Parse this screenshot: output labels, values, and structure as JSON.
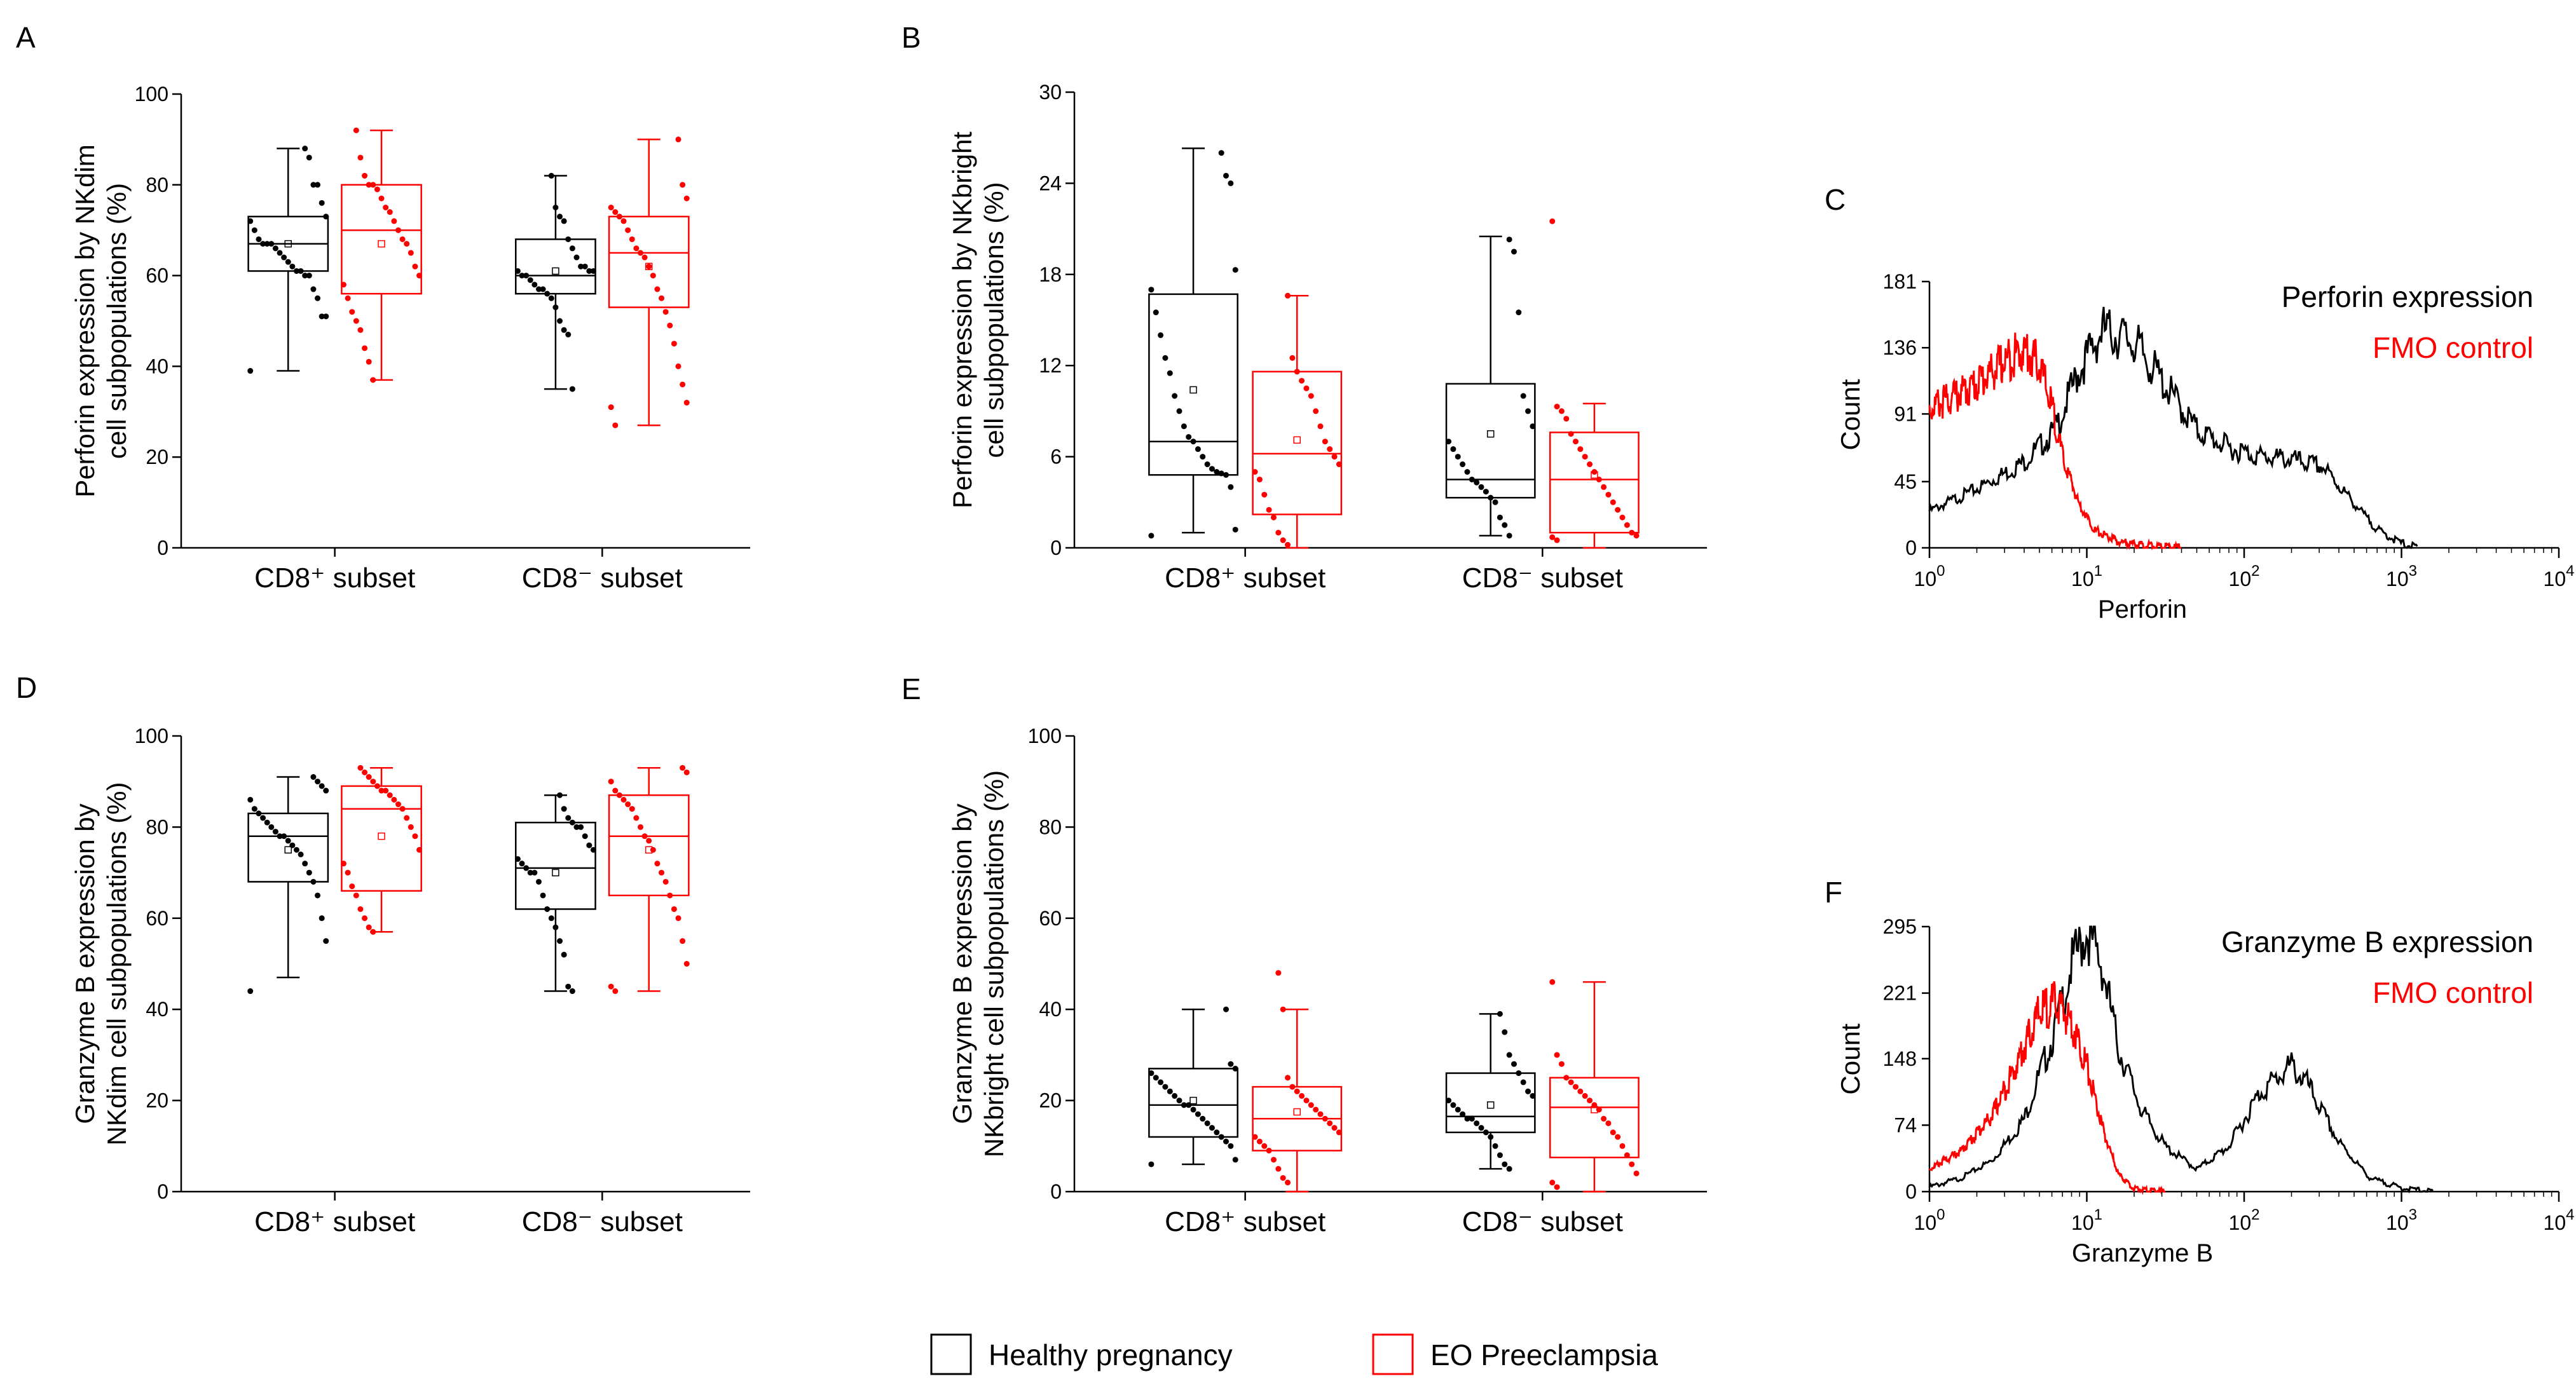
{
  "legend": {
    "items": [
      {
        "label": "Healthy pregnancy",
        "color": "#000000"
      },
      {
        "label": "EO Preeclampsia",
        "color": "#ff0000"
      }
    ]
  },
  "chart_data": [
    {
      "panel": "A",
      "type": "box",
      "ylabel_lines": [
        "Perforin expression by NKdim",
        "cell subpopulations (%)"
      ],
      "categories": [
        "CD8⁺ subset",
        "CD8⁻ subset"
      ],
      "ylim": [
        0,
        100
      ],
      "yticks": [
        0,
        20,
        40,
        60,
        80,
        100
      ],
      "series": [
        {
          "name": "Healthy pregnancy",
          "color": "#000000",
          "boxes": [
            {
              "min": 39,
              "q1": 61,
              "median": 67,
              "q3": 73,
              "max": 88,
              "mean": 67,
              "points": [
                39,
                51,
                51,
                55,
                57,
                60,
                60,
                61,
                61,
                62,
                63,
                64,
                65,
                66,
                67,
                67,
                67,
                68,
                70,
                72,
                73,
                76,
                80,
                80,
                86,
                88
              ]
            },
            {
              "min": 35,
              "q1": 56,
              "median": 60,
              "q3": 68,
              "max": 82,
              "mean": 61,
              "points": [
                35,
                47,
                48,
                50,
                53,
                55,
                56,
                57,
                57,
                58,
                59,
                60,
                60,
                61,
                61,
                61,
                62,
                62,
                64,
                66,
                68,
                72,
                73,
                75,
                82
              ]
            }
          ]
        },
        {
          "name": "EO Preeclampsia",
          "color": "#ff0000",
          "boxes": [
            {
              "min": 37,
              "q1": 56,
              "median": 70,
              "q3": 80,
              "max": 92,
              "mean": 67,
              "points": [
                37,
                41,
                44,
                48,
                50,
                52,
                55,
                58,
                60,
                62,
                65,
                67,
                68,
                70,
                72,
                74,
                75,
                77,
                79,
                80,
                80,
                82,
                86,
                92
              ]
            },
            {
              "min": 27,
              "q1": 53,
              "median": 65,
              "q3": 73,
              "max": 90,
              "mean": 62,
              "points": [
                27,
                31,
                32,
                36,
                40,
                45,
                49,
                52,
                55,
                57,
                60,
                62,
                64,
                65,
                66,
                68,
                70,
                72,
                73,
                74,
                75,
                77,
                80,
                90
              ]
            }
          ]
        }
      ]
    },
    {
      "panel": "B",
      "type": "box",
      "ylabel_lines": [
        "Perforin expression by NKbright",
        "cell subpopulations (%)"
      ],
      "categories": [
        "CD8⁺ subset",
        "CD8⁻ subset"
      ],
      "ylim": [
        0,
        30
      ],
      "yticks": [
        0,
        6,
        12,
        18,
        24,
        30
      ],
      "series": [
        {
          "name": "Healthy pregnancy",
          "color": "#000000",
          "boxes": [
            {
              "min": 1,
              "q1": 4.8,
              "median": 7,
              "q3": 16.7,
              "max": 26.3,
              "mean": 10.4,
              "points": [
                0.8,
                1.2,
                4.0,
                4.8,
                4.9,
                5.0,
                5.2,
                5.5,
                6.0,
                6.5,
                7.0,
                7.3,
                8.0,
                9.0,
                10.0,
                11.5,
                12.5,
                14.0,
                15.5,
                17.0,
                18.3,
                24.0,
                24.5,
                26.0
              ]
            },
            {
              "min": 0.8,
              "q1": 3.3,
              "median": 4.5,
              "q3": 10.8,
              "max": 20.5,
              "mean": 7.5,
              "points": [
                0.8,
                1.5,
                2.0,
                3.0,
                3.3,
                3.7,
                4.0,
                4.3,
                4.5,
                5.0,
                5.5,
                6.0,
                6.5,
                7.0,
                8.0,
                9.0,
                10.0,
                15.5,
                19.5,
                20.3
              ]
            }
          ]
        },
        {
          "name": "EO Preeclampsia",
          "color": "#ff0000",
          "boxes": [
            {
              "min": 0,
              "q1": 2.2,
              "median": 6.2,
              "q3": 11.6,
              "max": 16.6,
              "mean": 7.1,
              "points": [
                0.2,
                0.5,
                1.0,
                2.0,
                2.5,
                3.5,
                4.5,
                5.0,
                5.5,
                6.0,
                6.5,
                7.0,
                8.0,
                9.0,
                10.0,
                10.5,
                11.0,
                11.6,
                12.5,
                16.6
              ]
            },
            {
              "min": 0,
              "q1": 1.0,
              "median": 4.5,
              "q3": 7.6,
              "max": 9.5,
              "mean": 4.8,
              "points": [
                0.5,
                0.7,
                0.8,
                1.0,
                1.5,
                2.0,
                2.5,
                3.0,
                3.5,
                4.0,
                4.5,
                5.0,
                5.5,
                6.0,
                6.5,
                7.0,
                7.5,
                8.5,
                9.0,
                9.3,
                21.5
              ]
            }
          ]
        }
      ]
    },
    {
      "panel": "C",
      "type": "histogram",
      "xlabel": "Perforin",
      "ylabel": "Count",
      "yticks": [
        "0",
        "45",
        "91",
        "136",
        "181"
      ],
      "ylim": [
        0,
        181
      ],
      "xtick_exponents": [
        "0",
        "1",
        "2",
        "3",
        "4"
      ],
      "xtick_base": "10",
      "xlog_range": [
        0,
        4
      ],
      "legend_lines": [
        {
          "label": "Perforin expression",
          "color": "#000000"
        },
        {
          "label": "FMO control",
          "color": "#ff0000"
        }
      ],
      "series": [
        {
          "name": "Perforin expression",
          "color": "#000000",
          "x_log": [
            0,
            0.3,
            0.6,
            0.8,
            0.95,
            1.1,
            1.3,
            1.5,
            1.7,
            1.9,
            2.1,
            2.3,
            2.5,
            2.7,
            2.85,
            3.0,
            3.1
          ],
          "y": [
            25,
            40,
            58,
            80,
            120,
            148,
            140,
            110,
            80,
            68,
            62,
            60,
            55,
            30,
            12,
            3,
            0
          ]
        },
        {
          "name": "FMO control",
          "color": "#ff0000",
          "x_log": [
            0,
            0.1,
            0.2,
            0.3,
            0.4,
            0.5,
            0.6,
            0.7,
            0.78,
            0.85,
            0.95,
            1.05,
            1.2,
            1.4,
            1.6
          ],
          "y": [
            95,
            100,
            105,
            112,
            120,
            128,
            135,
            125,
            95,
            60,
            30,
            12,
            4,
            1,
            0
          ]
        }
      ]
    },
    {
      "panel": "D",
      "type": "box",
      "ylabel_lines": [
        "Granzyme B expression by",
        "NKdim cell subpopulations (%)"
      ],
      "categories": [
        "CD8⁺ subset",
        "CD8⁻ subset"
      ],
      "ylim": [
        0,
        100
      ],
      "yticks": [
        0,
        20,
        40,
        60,
        80,
        100
      ],
      "series": [
        {
          "name": "Healthy pregnancy",
          "color": "#000000",
          "boxes": [
            {
              "min": 47,
              "q1": 68,
              "median": 78,
              "q3": 83,
              "max": 91,
              "mean": 75,
              "points": [
                44,
                55,
                60,
                65,
                68,
                70,
                72,
                74,
                75,
                76,
                77,
                78,
                78,
                79,
                80,
                81,
                82,
                83,
                84,
                86,
                88,
                89,
                90,
                91
              ]
            },
            {
              "min": 44,
              "q1": 62,
              "median": 71,
              "q3": 81,
              "max": 87,
              "mean": 70,
              "points": [
                44,
                45,
                52,
                55,
                58,
                60,
                62,
                65,
                68,
                70,
                70,
                71,
                72,
                73,
                75,
                76,
                78,
                80,
                80,
                81,
                82,
                84,
                87
              ]
            }
          ]
        },
        {
          "name": "EO Preeclampsia",
          "color": "#ff0000",
          "boxes": [
            {
              "min": 57,
              "q1": 66,
              "median": 84,
              "q3": 89,
              "max": 93,
              "mean": 78,
              "points": [
                57,
                58,
                60,
                62,
                65,
                67,
                70,
                72,
                75,
                78,
                80,
                82,
                84,
                85,
                86,
                87,
                88,
                88,
                89,
                90,
                91,
                92,
                93
              ]
            },
            {
              "min": 44,
              "q1": 65,
              "median": 78,
              "q3": 87,
              "max": 93,
              "mean": 75,
              "points": [
                44,
                45,
                50,
                55,
                60,
                62,
                65,
                68,
                70,
                72,
                75,
                77,
                78,
                80,
                82,
                84,
                85,
                86,
                87,
                88,
                90,
                92,
                93
              ]
            }
          ]
        }
      ]
    },
    {
      "panel": "E",
      "type": "box",
      "ylabel_lines": [
        "Granzyme B expression by",
        "NKbright cell subpopulations (%)"
      ],
      "categories": [
        "CD8⁺ subset",
        "CD8⁻ subset"
      ],
      "ylim": [
        0,
        100
      ],
      "yticks": [
        0,
        20,
        40,
        60,
        80,
        100
      ],
      "series": [
        {
          "name": "Healthy pregnancy",
          "color": "#000000",
          "boxes": [
            {
              "min": 6,
              "q1": 12,
              "median": 19,
              "q3": 27,
              "max": 40,
              "mean": 20,
              "points": [
                6,
                7,
                10,
                11,
                12,
                13,
                14,
                15,
                16,
                17,
                18,
                19,
                19,
                20,
                21,
                22,
                23,
                24,
                25,
                26,
                27,
                28,
                40
              ]
            },
            {
              "min": 5,
              "q1": 13,
              "median": 16.5,
              "q3": 26,
              "max": 39,
              "mean": 19,
              "points": [
                5,
                6,
                8,
                10,
                12,
                13,
                14,
                15,
                16,
                16,
                17,
                18,
                19,
                20,
                21,
                22,
                24,
                26,
                28,
                30,
                35,
                39
              ]
            }
          ]
        },
        {
          "name": "EO Preeclampsia",
          "color": "#ff0000",
          "boxes": [
            {
              "min": 0,
              "q1": 9,
              "median": 16,
              "q3": 23,
              "max": 40,
              "mean": 17.5,
              "points": [
                2,
                3,
                5,
                7,
                9,
                10,
                11,
                12,
                13,
                14,
                15,
                16,
                17,
                18,
                19,
                20,
                21,
                22,
                23,
                25,
                40,
                48
              ]
            },
            {
              "min": 0,
              "q1": 7.5,
              "median": 18.5,
              "q3": 25,
              "max": 46,
              "mean": 18,
              "points": [
                1,
                2,
                4,
                6,
                8,
                10,
                12,
                13,
                15,
                16,
                18,
                19,
                20,
                21,
                22,
                23,
                24,
                25,
                28,
                30,
                46
              ]
            }
          ]
        }
      ]
    },
    {
      "panel": "F",
      "type": "histogram",
      "xlabel": "Granzyme B",
      "ylabel": "Count",
      "yticks": [
        "0",
        "74",
        "148",
        "221",
        "295"
      ],
      "ylim": [
        0,
        295
      ],
      "xtick_exponents": [
        "0",
        "1",
        "2",
        "3",
        "4"
      ],
      "xtick_base": "10",
      "xlog_range": [
        0,
        4
      ],
      "legend_lines": [
        {
          "label": "Granzyme B expression",
          "color": "#000000"
        },
        {
          "label": "FMO control",
          "color": "#ff0000"
        }
      ],
      "series": [
        {
          "name": "Granzyme B expression",
          "color": "#000000",
          "x_log": [
            0,
            0.2,
            0.4,
            0.6,
            0.8,
            0.9,
            1.0,
            1.1,
            1.2,
            1.35,
            1.5,
            1.7,
            1.9,
            2.1,
            2.3,
            2.4,
            2.6,
            2.8,
            3.0,
            3.2
          ],
          "y": [
            5,
            15,
            35,
            80,
            180,
            250,
            290,
            250,
            160,
            90,
            50,
            25,
            50,
            110,
            140,
            120,
            55,
            15,
            4,
            0
          ]
        },
        {
          "name": "FMO control",
          "color": "#ff0000",
          "x_log": [
            0,
            0.2,
            0.4,
            0.55,
            0.7,
            0.8,
            0.9,
            1.0,
            1.1,
            1.2,
            1.3,
            1.5
          ],
          "y": [
            25,
            45,
            85,
            140,
            200,
            210,
            190,
            140,
            70,
            20,
            3,
            0
          ]
        }
      ]
    }
  ]
}
